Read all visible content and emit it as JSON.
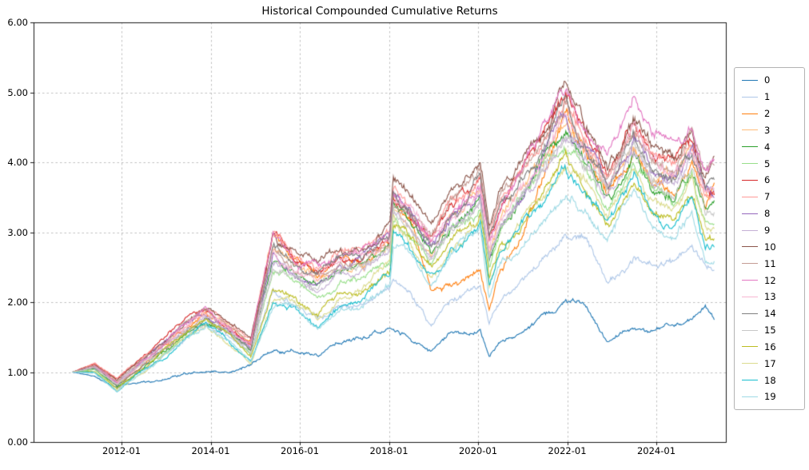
{
  "chart": {
    "title": "Historical Compounded Cumulative Returns",
    "legend_position": "right",
    "grid": "dashed",
    "yticks": [
      {
        "label": "0.00",
        "value": 0
      },
      {
        "label": "1.00",
        "value": 1
      },
      {
        "label": "2.00",
        "value": 2
      },
      {
        "label": "3.00",
        "value": 3
      },
      {
        "label": "4.00",
        "value": 4
      },
      {
        "label": "5.00",
        "value": 5
      },
      {
        "label": "6.00",
        "value": 6
      }
    ],
    "xticks": [
      {
        "label": "2012-01",
        "year": 2012
      },
      {
        "label": "2014-01",
        "year": 2014
      },
      {
        "label": "2016-01",
        "year": 2016
      },
      {
        "label": "2018-01",
        "year": 2018
      },
      {
        "label": "2020-01",
        "year": 2020
      },
      {
        "label": "2022-01",
        "year": 2022
      },
      {
        "label": "2024-01",
        "year": 2024
      }
    ]
  },
  "chart_data": {
    "type": "line",
    "title": "Historical Compounded Cumulative Returns",
    "xlabel": "",
    "ylabel": "",
    "ylim": [
      0,
      6
    ],
    "x_range_years": [
      2010.9,
      2025.3
    ],
    "x_years": [
      2010.9,
      2011.4,
      2011.9,
      2012.4,
      2012.9,
      2013.4,
      2013.9,
      2014.4,
      2014.9,
      2015.4,
      2015.9,
      2016.4,
      2016.9,
      2017.4,
      2017.95,
      2018.02,
      2018.1,
      2018.45,
      2018.95,
      2019.4,
      2019.9,
      2020.05,
      2020.25,
      2020.5,
      2020.9,
      2021.4,
      2021.95,
      2022.4,
      2022.9,
      2023.5,
      2023.9,
      2024.4,
      2024.8,
      2025.1,
      2025.3
    ],
    "band_center": [
      1.0,
      1.05,
      0.8,
      1.05,
      1.3,
      1.55,
      1.75,
      1.55,
      1.28,
      2.45,
      2.3,
      2.1,
      2.35,
      2.4,
      2.68,
      2.7,
      3.3,
      3.1,
      2.65,
      3.1,
      3.35,
      3.45,
      2.55,
      3.05,
      3.35,
      3.8,
      4.35,
      3.95,
      3.45,
      4.15,
      3.7,
      3.55,
      3.95,
      3.3,
      3.3
    ],
    "band_halfwidth": [
      0.0,
      0.07,
      0.1,
      0.1,
      0.12,
      0.15,
      0.15,
      0.15,
      0.2,
      0.65,
      0.42,
      0.55,
      0.45,
      0.42,
      0.4,
      0.4,
      0.38,
      0.4,
      0.4,
      0.42,
      0.42,
      0.45,
      0.5,
      0.48,
      0.55,
      0.58,
      0.72,
      0.62,
      0.62,
      0.65,
      0.62,
      0.62,
      0.58,
      0.62,
      0.65
    ],
    "series": [
      {
        "label": "0",
        "color": "#1f77b4",
        "values": [
          1.0,
          0.95,
          0.8,
          0.87,
          0.92,
          1.02,
          1.05,
          1.03,
          1.1,
          1.35,
          1.3,
          1.2,
          1.38,
          1.45,
          1.58,
          1.6,
          1.63,
          1.55,
          1.28,
          1.55,
          1.58,
          1.62,
          1.18,
          1.45,
          1.55,
          1.8,
          2.05,
          1.95,
          1.45,
          1.7,
          1.65,
          1.65,
          1.7,
          1.9,
          1.75
        ]
      },
      {
        "label": "1",
        "color": "#aec7e8",
        "values": [
          1.0,
          1.03,
          0.75,
          1.0,
          1.22,
          1.45,
          1.65,
          1.45,
          1.2,
          2.1,
          1.95,
          1.8,
          2.0,
          2.05,
          2.25,
          2.27,
          2.45,
          2.25,
          1.7,
          2.1,
          2.25,
          2.3,
          1.75,
          2.1,
          2.35,
          2.55,
          2.85,
          2.85,
          2.25,
          2.65,
          2.55,
          2.6,
          2.85,
          2.6,
          2.5
        ]
      },
      {
        "label": "2",
        "color": "#ff7f0e",
        "values": [
          1.0,
          1.08,
          0.85,
          1.1,
          1.4,
          1.62,
          1.85,
          1.62,
          1.4,
          2.85,
          2.55,
          2.3,
          2.55,
          2.6,
          2.85,
          2.87,
          3.45,
          3.2,
          2.15,
          2.35,
          2.45,
          2.5,
          1.95,
          2.55,
          2.85,
          3.6,
          4.55,
          4.05,
          3.55,
          4.3,
          3.85,
          3.7,
          4.15,
          3.45,
          3.8
        ]
      },
      {
        "label": "3",
        "color": "#ffbb78",
        "offset_start": 0.35,
        "offset_end": 0.3
      },
      {
        "label": "4",
        "color": "#2ca02c",
        "offset_start": 0.1,
        "offset_end": 0.1
      },
      {
        "label": "5",
        "color": "#98df8a",
        "offset_start": -0.05,
        "offset_end": -0.05
      },
      {
        "label": "6",
        "color": "#d62728",
        "offset_start": 1.0,
        "offset_end": 0.5
      },
      {
        "label": "7",
        "color": "#ff9896",
        "offset_start": 0.85,
        "offset_end": 0.4
      },
      {
        "label": "8",
        "color": "#9467bd",
        "offset_start": 0.45,
        "offset_end": 0.35
      },
      {
        "label": "9",
        "color": "#c5b0d5",
        "offset_start": 0.3,
        "offset_end": 0.25
      },
      {
        "label": "10",
        "color": "#8c564b",
        "offset_start": 0.6,
        "offset_end": 1.0
      },
      {
        "label": "11",
        "color": "#c49c94",
        "offset_start": 0.5,
        "offset_end": 0.8
      },
      {
        "label": "12",
        "color": "#e377c2",
        "offset_start": 0.55,
        "offset_end": 0.92
      },
      {
        "label": "13",
        "color": "#f7b6d2",
        "offset_start": 0.4,
        "offset_end": 0.65
      },
      {
        "label": "14",
        "color": "#7f7f7f",
        "offset_start": 0.35,
        "offset_end": 0.6
      },
      {
        "label": "15",
        "color": "#c7c7c7",
        "offset_start": 0.1,
        "offset_end": 0.2
      },
      {
        "label": "16",
        "color": "#bcbd22",
        "offset_start": -0.45,
        "offset_end": -0.4
      },
      {
        "label": "17",
        "color": "#dbdb8d",
        "offset_start": -0.6,
        "offset_end": -0.55
      },
      {
        "label": "18",
        "color": "#17becf",
        "offset_start": -0.7,
        "offset_end": -0.72
      },
      {
        "label": "19",
        "color": "#9edae5",
        "offset_start": -0.9,
        "offset_end": -0.95
      }
    ]
  }
}
